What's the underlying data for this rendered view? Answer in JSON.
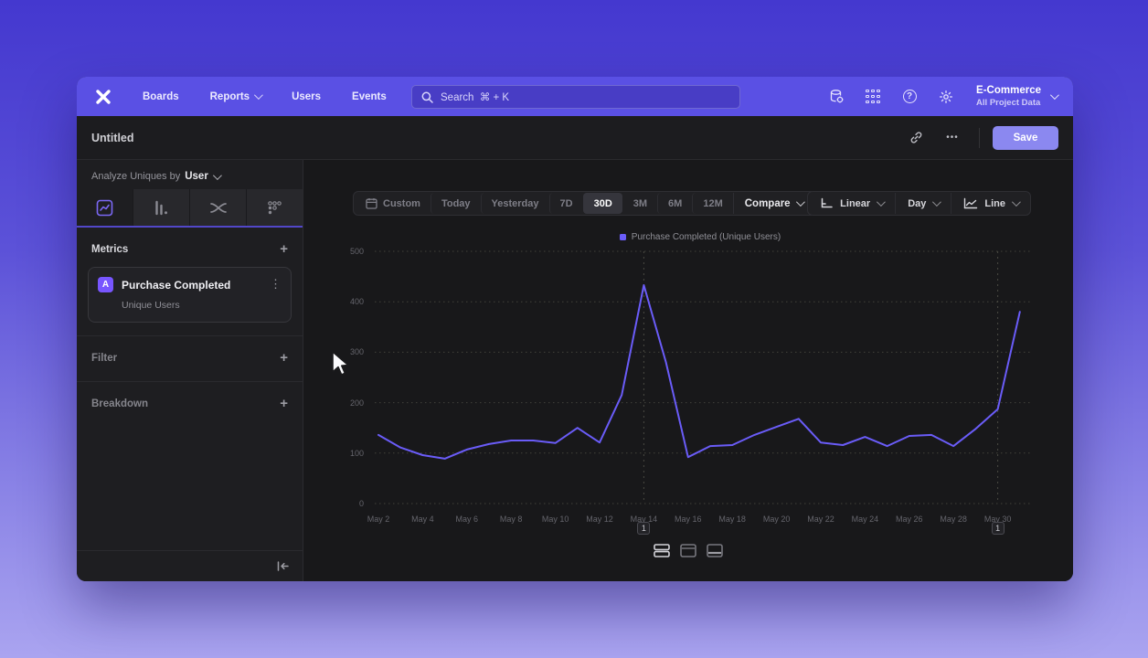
{
  "navbar": {
    "items": [
      {
        "label": "Boards",
        "chevron": false
      },
      {
        "label": "Reports",
        "chevron": true
      },
      {
        "label": "Users",
        "chevron": false
      },
      {
        "label": "Events",
        "chevron": false
      }
    ],
    "search": {
      "placeholder": "Search",
      "shortcut": "⌘ + K"
    },
    "icons": [
      "data-icon",
      "apps-grid-icon",
      "help-icon",
      "gear-icon"
    ],
    "project": {
      "name": "E-Commerce",
      "scope": "All Project Data"
    }
  },
  "header": {
    "title": "Untitled",
    "more_label": "•••",
    "save_label": "Save"
  },
  "sidebar": {
    "analyze_prefix": "Analyze Uniques by",
    "analyze_value": "User",
    "tabs": [
      "insights-chart-tab",
      "bar-chart-tab",
      "flows-tab",
      "retention-tab"
    ],
    "active_tab_index": 0,
    "metrics_title": "Metrics",
    "filter_title": "Filter",
    "breakdown_title": "Breakdown",
    "metric": {
      "letter": "A",
      "name": "Purchase Completed",
      "type": "Unique Users"
    }
  },
  "toolbar": {
    "ranges": [
      "Custom",
      "Today",
      "Yesterday",
      "7D",
      "30D",
      "3M",
      "6M",
      "12M"
    ],
    "active_range": "30D",
    "compare_label": "Compare",
    "controls": [
      {
        "label": "Linear",
        "icon": "axis-scale-icon"
      },
      {
        "label": "Day",
        "icon": ""
      },
      {
        "label": "Line",
        "icon": "line-chart-icon"
      }
    ]
  },
  "colors": {
    "accent": "#7856ff",
    "line": "#6a5cf8",
    "navbar": "#5a50e4",
    "save_button": "#8b88f0",
    "grid": "#42423a"
  },
  "chart_data": {
    "type": "line",
    "title": "Purchase Completed (Unique Users)",
    "legend": [
      "Purchase Completed (Unique Users)"
    ],
    "legend_position": "top-center",
    "grid": true,
    "ylim": [
      0,
      500
    ],
    "yticks": [
      0,
      100,
      200,
      300,
      400,
      500
    ],
    "x": [
      "May 2",
      "May 3",
      "May 4",
      "May 5",
      "May 6",
      "May 7",
      "May 8",
      "May 9",
      "May 10",
      "May 11",
      "May 12",
      "May 13",
      "May 14",
      "May 15",
      "May 16",
      "May 17",
      "May 18",
      "May 19",
      "May 20",
      "May 21",
      "May 22",
      "May 23",
      "May 24",
      "May 25",
      "May 26",
      "May 27",
      "May 28",
      "May 29",
      "May 30",
      "May 31"
    ],
    "xticklabels": [
      "May 2",
      "May 4",
      "May 6",
      "May 8",
      "May 10",
      "May 12",
      "May 14",
      "May 16",
      "May 18",
      "May 20",
      "May 22",
      "May 24",
      "May 26",
      "May 28",
      "May 30"
    ],
    "series": [
      {
        "name": "Purchase Completed (Unique Users)",
        "color": "#6a5cf8",
        "values": [
          136,
          111,
          96,
          89,
          107,
          118,
          125,
          125,
          120,
          150,
          121,
          215,
          433,
          280,
          92,
          114,
          116,
          136,
          152,
          168,
          121,
          116,
          132,
          114,
          134,
          136,
          114,
          148,
          187,
          380
        ]
      }
    ],
    "annotations": [
      {
        "label": "1",
        "x": "May 14"
      },
      {
        "label": "1",
        "x": "May 30"
      }
    ]
  }
}
